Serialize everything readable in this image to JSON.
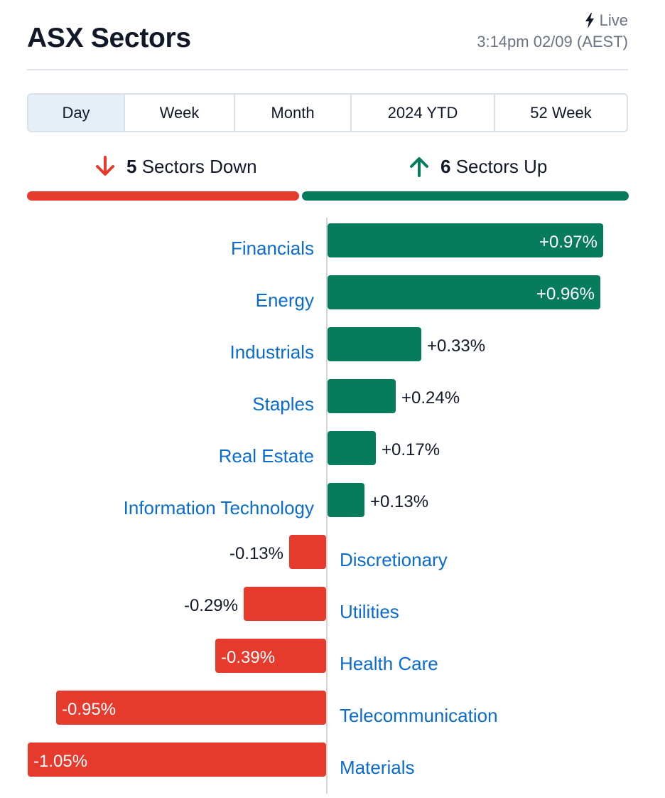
{
  "header": {
    "title": "ASX Sectors",
    "live_label": "Live",
    "live_icon": "lightning-icon",
    "timestamp": "3:14pm 02/09 (AEST)"
  },
  "tabs": [
    {
      "label": "Day",
      "active": true
    },
    {
      "label": "Week",
      "active": false
    },
    {
      "label": "Month",
      "active": false
    },
    {
      "label": "2024 YTD",
      "active": false
    },
    {
      "label": "52 Week",
      "active": false
    }
  ],
  "summary": {
    "down_count": "5",
    "down_text": "Sectors Down",
    "down_icon": "arrow-down-icon",
    "up_count": "6",
    "up_text": "Sectors Up",
    "up_icon": "arrow-up-icon"
  },
  "colors": {
    "positive": "#067c5c",
    "negative": "#e63a2c",
    "label": "#0a6ccf",
    "axis": "#d1d5db"
  },
  "chart_data": {
    "type": "bar",
    "orientation": "horizontal-diverging",
    "unit": "%",
    "categories": [
      "Financials",
      "Energy",
      "Industrials",
      "Staples",
      "Real Estate",
      "Information Technology",
      "Discretionary",
      "Utilities",
      "Health Care",
      "Telecommunication",
      "Materials"
    ],
    "values": [
      0.97,
      0.96,
      0.33,
      0.24,
      0.17,
      0.13,
      -0.13,
      -0.29,
      -0.39,
      -0.95,
      -1.05
    ],
    "value_labels": [
      "+0.97%",
      "+0.96%",
      "+0.33%",
      "+0.24%",
      "+0.17%",
      "+0.13%",
      "-0.13%",
      "-0.29%",
      "-0.39%",
      "-0.95%",
      "-1.05%"
    ]
  }
}
